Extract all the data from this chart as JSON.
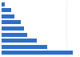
{
  "values": [
    22,
    14,
    11,
    8,
    7,
    6,
    4,
    3,
    1
  ],
  "bar_color": "#2d6ec8",
  "background_color": "#ffffff",
  "grid_color": "#d9d9d9",
  "bar_height": 0.65,
  "figsize": [
    1.0,
    0.71
  ],
  "dpi": 100
}
